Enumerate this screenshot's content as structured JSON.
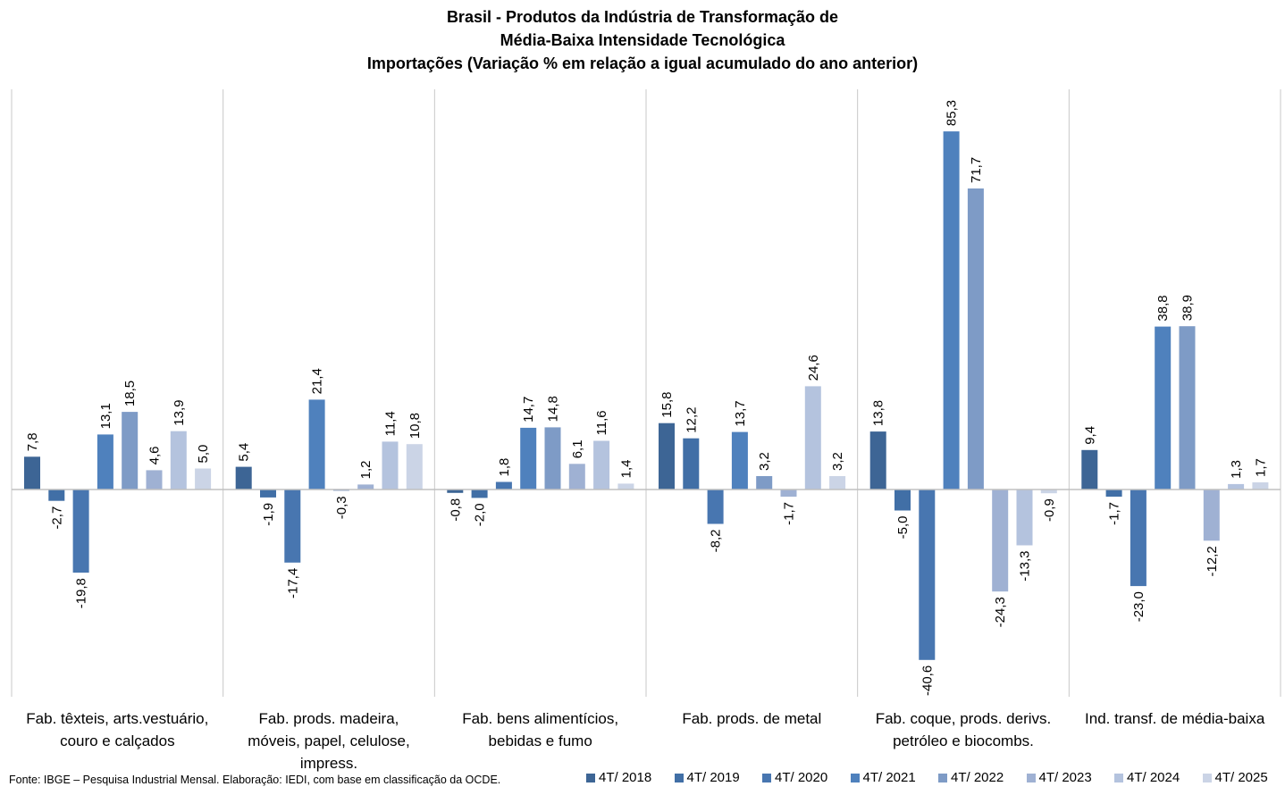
{
  "chart_data": {
    "type": "bar",
    "title": [
      "Brasil - Produtos da Indústria de Transformação de",
      "Média-Baixa Intensidade Tecnológica",
      "Importações (Variação % em relação a igual acumulado do ano anterior)"
    ],
    "xlabel": "",
    "ylabel": "",
    "ylim": [
      -49,
      96
    ],
    "grid": false,
    "legend_position": "bottom-right",
    "categories": [
      [
        "Fab. têxteis, arts.vestuário,",
        "couro e calçados"
      ],
      [
        "Fab. prods. madeira,",
        "móveis, papel, celulose,",
        "impress."
      ],
      [
        "Fab. bens alimentícios,",
        "bebidas e fumo"
      ],
      [
        "Fab. prods. de metal"
      ],
      [
        "Fab. coque, prods. derivs.",
        "petróleo e biocombs."
      ],
      [
        "Ind. transf. de média-baixa"
      ]
    ],
    "series": [
      {
        "name": "4T/ 2018",
        "color": "#3d6595",
        "values": [
          7.8,
          5.4,
          -0.8,
          15.8,
          13.8,
          9.4
        ],
        "labels": [
          "7,8",
          "5,4",
          "-0,8",
          "15,8",
          "13,8",
          "9,4"
        ]
      },
      {
        "name": "4T/ 2019",
        "color": "#416fa6",
        "values": [
          -2.7,
          -1.9,
          -2.0,
          12.2,
          -5.0,
          -1.7
        ],
        "labels": [
          "-2,7",
          "-1,9",
          "-2,0",
          "12,2",
          "-5,0",
          "-1,7"
        ]
      },
      {
        "name": "4T/ 2020",
        "color": "#4876b0",
        "values": [
          -19.8,
          -17.4,
          1.8,
          -8.2,
          -40.6,
          -23.0
        ],
        "labels": [
          "-19,8",
          "-17,4",
          "1,8",
          "-8,2",
          "-40,6",
          "-23,0"
        ]
      },
      {
        "name": "4T/ 2021",
        "color": "#4f81bd",
        "values": [
          13.1,
          21.4,
          14.7,
          13.7,
          85.3,
          38.8
        ],
        "labels": [
          "13,1",
          "21,4",
          "14,7",
          "13,7",
          "85,3",
          "38,8"
        ]
      },
      {
        "name": "4T/ 2022",
        "color": "#7e9bc6",
        "values": [
          18.5,
          -0.3,
          14.8,
          3.2,
          71.7,
          38.9
        ],
        "labels": [
          "18,5",
          "-0,3",
          "14,8",
          "3,2",
          "71,7",
          "38,9"
        ]
      },
      {
        "name": "4T/ 2023",
        "color": "#9fb1d3",
        "values": [
          4.6,
          1.2,
          6.1,
          -1.7,
          -24.3,
          -12.2
        ],
        "labels": [
          "4,6",
          "1,2",
          "6,1",
          "-1,7",
          "-24,3",
          "-12,2"
        ]
      },
      {
        "name": "4T/ 2024",
        "color": "#b4c3de",
        "values": [
          13.9,
          11.4,
          11.6,
          24.6,
          -13.3,
          1.3
        ],
        "labels": [
          "13,9",
          "11,4",
          "11,6",
          "24,6",
          "-13,3",
          "1,3"
        ]
      },
      {
        "name": "4T/ 2025",
        "color": "#cbd4e6",
        "values": [
          5.0,
          10.8,
          1.4,
          3.2,
          -0.9,
          1.7
        ],
        "labels": [
          "5,0",
          "10,8",
          "1,4",
          "3,2",
          "-0,9",
          "1,7"
        ]
      }
    ],
    "source": "Fonte: IBGE – Pesquisa Industrial Mensal. Elaboração: IEDI, com base em classificação da OCDE."
  }
}
